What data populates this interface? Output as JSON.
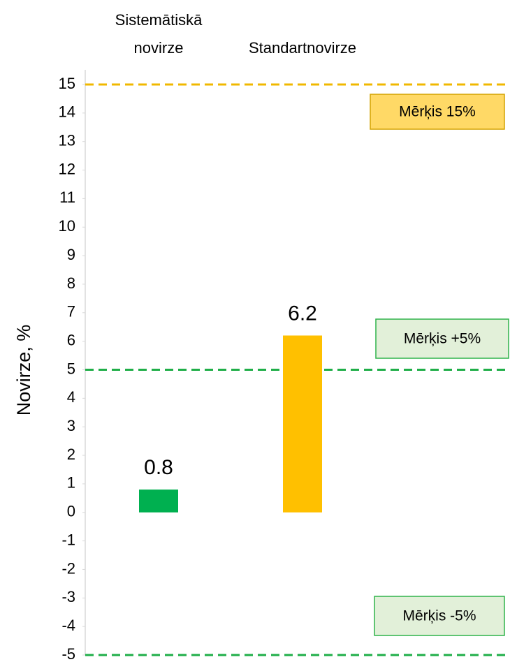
{
  "chart_data": {
    "type": "bar",
    "categories": [
      "Sistemātiskā novirze",
      "Standartnovirze"
    ],
    "values": [
      0.8,
      6.2
    ],
    "colors": [
      "#00b050",
      "#ffc000"
    ],
    "ylabel": "Novirze, %",
    "ylim": [
      -5,
      15
    ],
    "yticks": [
      -5,
      -4,
      -3,
      -2,
      -1,
      0,
      1,
      2,
      3,
      4,
      5,
      6,
      7,
      8,
      9,
      10,
      11,
      12,
      13,
      14,
      15
    ],
    "reference_lines": [
      {
        "value": 15,
        "label": "Mērķis 15%",
        "color": "#f0b800",
        "fill": "#ffd966",
        "border": "#d4a300"
      },
      {
        "value": 5,
        "label": "Mērķis +5%",
        "color": "#1fae48",
        "fill": "#e2f0d9",
        "border": "#2fb34a"
      },
      {
        "value": -5,
        "label": "Mērķis -5%",
        "color": "#1fae48",
        "fill": "#e2f0d9",
        "border": "#2fb34a"
      }
    ]
  }
}
